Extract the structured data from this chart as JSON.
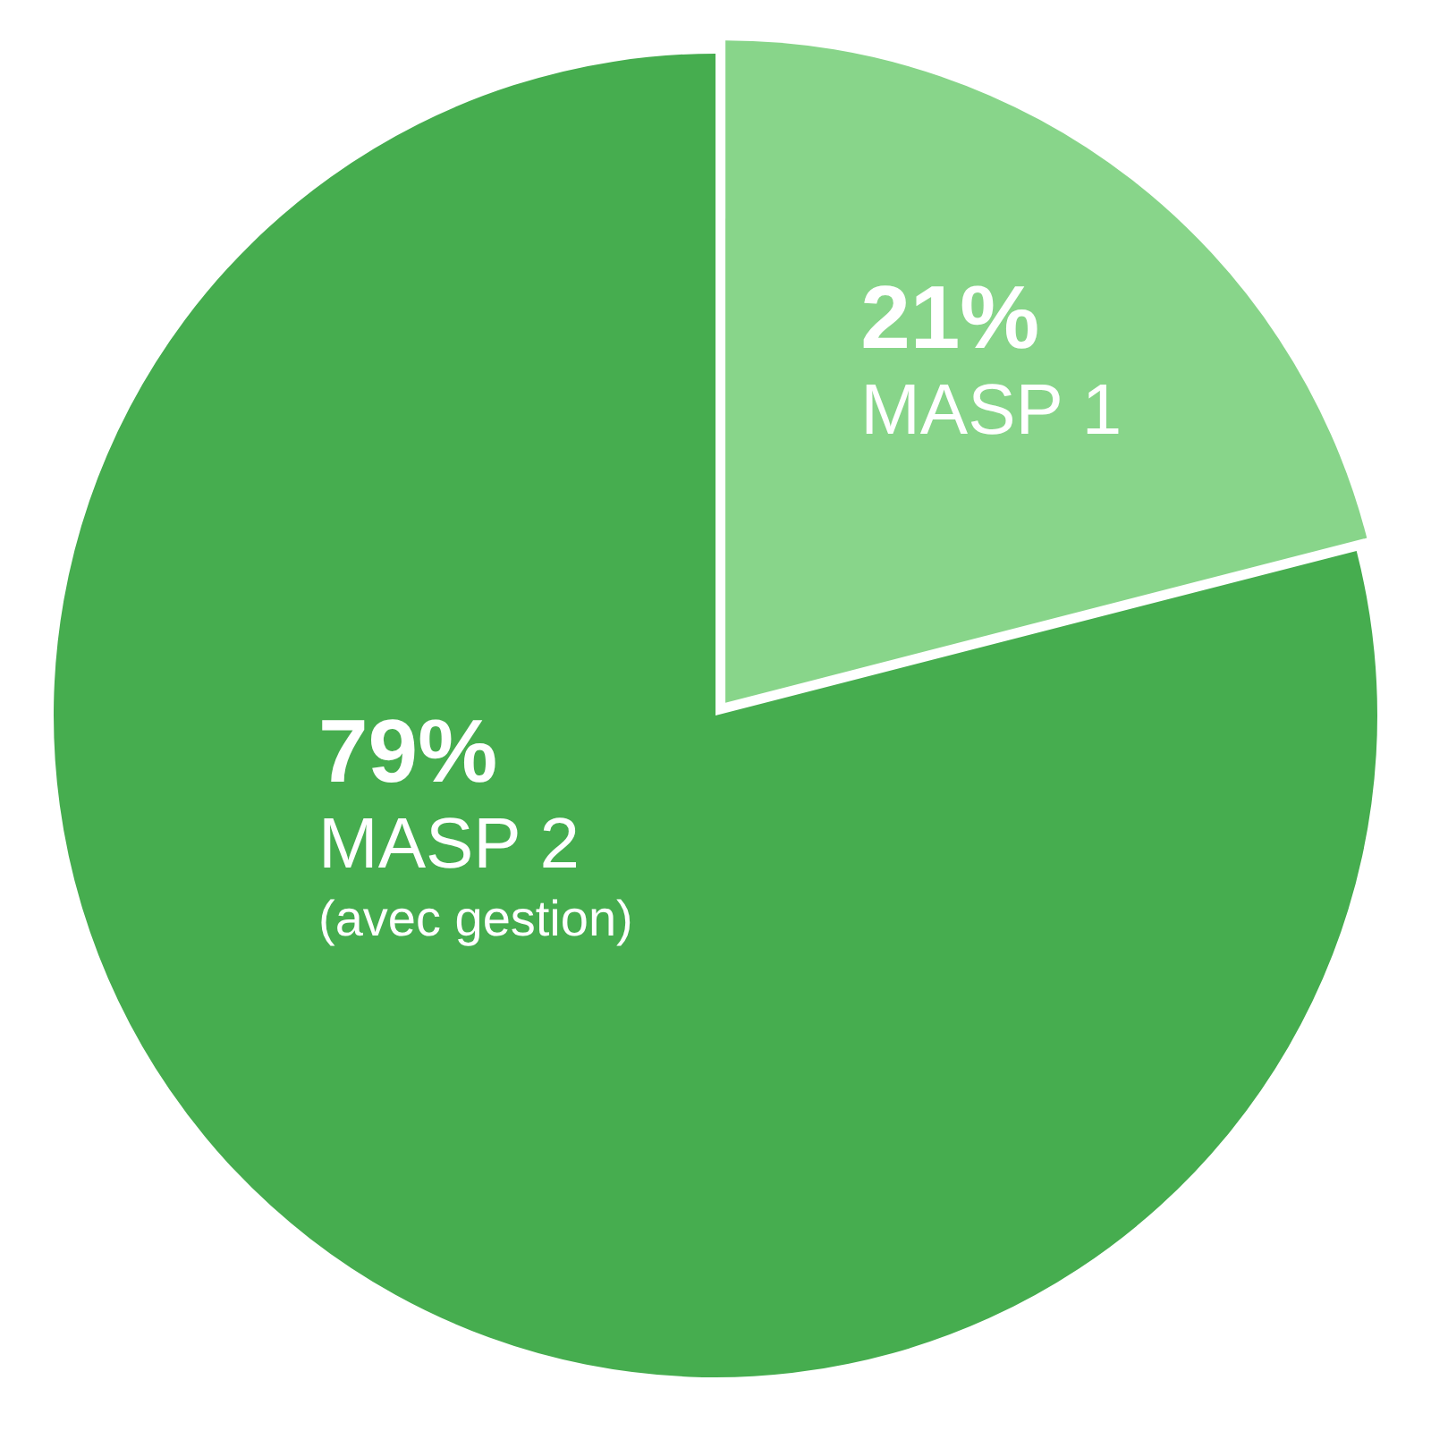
{
  "chart_data": {
    "type": "pie",
    "categories": [
      "MASP 1",
      "MASP 2 (avec gestion)"
    ],
    "values": [
      21,
      79
    ],
    "value_labels": [
      "21%",
      "79%"
    ],
    "colors": [
      "#88d58a",
      "#46ad4f"
    ],
    "legend": false
  }
}
